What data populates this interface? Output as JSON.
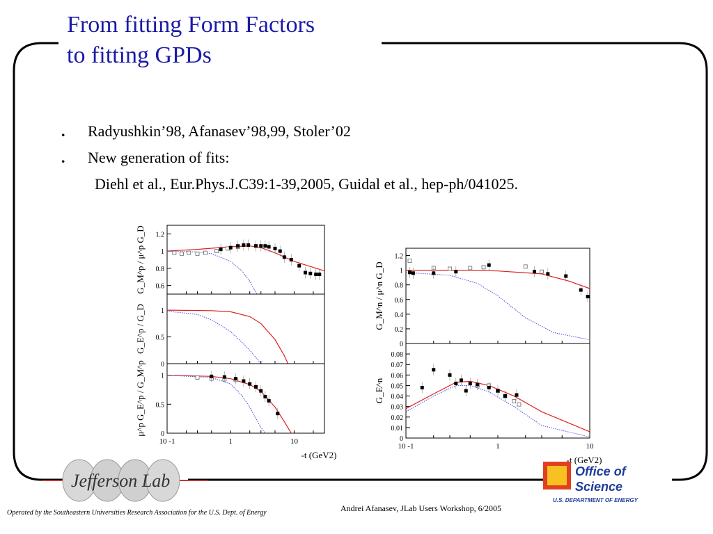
{
  "slide": {
    "title_line1": "From fitting Form Factors",
    "title_line2": "to fitting GPDs",
    "bullets": [
      "Radyushkin’98, Afanasev’98,99, Stoler’02",
      "New generation of fits:"
    ],
    "sub_bullet": "Diehl et al., Eur.Phys.J.C39:1-39,2005, Guidal et al., hep-ph/041025.",
    "footer_left": "Operated by the Southeastern Universities Research Association for the U.S. Dept. of Energy",
    "footer_right": "Andrei Afanasev, JLab Users Workshop, 6/2005",
    "logo_left": "Jefferson Lab",
    "logo_right": {
      "line1": "Office of",
      "line2": "Science",
      "line3": "U.S. DEPARTMENT OF ENERGY"
    },
    "colors": {
      "title": "#1a1aa8",
      "fit_red": "#e02020",
      "fit_blue_dotted": "#4a4ae0",
      "ofs_blue": "#1e3c9a"
    }
  },
  "chart_data": [
    {
      "type": "scatter",
      "id": "proton-gm",
      "ylabel": "G_M^p / μ^p G_D",
      "xscale": "log",
      "xlim": [
        0.1,
        30
      ],
      "ylim": [
        0.5,
        1.3
      ],
      "yticks": [
        "1.2",
        "1",
        "0.8",
        "0.6"
      ],
      "ytick_values": [
        1.2,
        1.0,
        0.8,
        0.6
      ],
      "open_points": [
        [
          0.13,
          0.98
        ],
        [
          0.17,
          0.97
        ],
        [
          0.22,
          0.98
        ],
        [
          0.3,
          0.97
        ],
        [
          0.4,
          0.98
        ],
        [
          0.6,
          1.0
        ],
        [
          0.9,
          1.03
        ],
        [
          1.3,
          1.05
        ]
      ],
      "filled_points": [
        [
          0.7,
          1.02
        ],
        [
          1.0,
          1.04
        ],
        [
          1.3,
          1.06
        ],
        [
          1.6,
          1.07
        ],
        [
          1.9,
          1.07
        ],
        [
          2.5,
          1.06
        ],
        [
          3.0,
          1.06
        ],
        [
          3.5,
          1.06
        ],
        [
          4.0,
          1.05
        ],
        [
          5.0,
          1.03
        ],
        [
          6.0,
          1.0
        ],
        [
          7.0,
          0.93
        ],
        [
          9.0,
          0.9
        ],
        [
          12.0,
          0.83
        ],
        [
          15.0,
          0.75
        ],
        [
          18.0,
          0.74
        ],
        [
          22.0,
          0.73
        ],
        [
          25.0,
          0.73
        ]
      ],
      "fit_red": [
        [
          0.1,
          1.0
        ],
        [
          0.3,
          1.02
        ],
        [
          1.0,
          1.05
        ],
        [
          2.0,
          1.06
        ],
        [
          3.0,
          1.04
        ],
        [
          5.0,
          0.98
        ],
        [
          10.0,
          0.88
        ],
        [
          30.0,
          0.77
        ]
      ],
      "fit_blue": [
        [
          0.1,
          1.0
        ],
        [
          0.3,
          0.99
        ],
        [
          0.5,
          0.97
        ],
        [
          1.0,
          0.88
        ],
        [
          1.5,
          0.77
        ],
        [
          2.0,
          0.65
        ],
        [
          2.6,
          0.5
        ]
      ]
    },
    {
      "type": "line",
      "id": "proton-ge",
      "ylabel": "G_E^p / G_D",
      "xscale": "log",
      "xlim": [
        0.1,
        30
      ],
      "ylim": [
        0,
        1.3
      ],
      "yticks": [
        "1",
        "0.5",
        "0"
      ],
      "ytick_values": [
        1,
        0.5,
        0
      ],
      "fit_red": [
        [
          0.1,
          1.0
        ],
        [
          0.5,
          0.99
        ],
        [
          1.0,
          0.97
        ],
        [
          2.0,
          0.88
        ],
        [
          3.0,
          0.75
        ],
        [
          5.0,
          0.45
        ],
        [
          7.0,
          0.15
        ],
        [
          8.0,
          0.0
        ]
      ],
      "fit_blue": [
        [
          0.1,
          0.98
        ],
        [
          0.3,
          0.92
        ],
        [
          0.5,
          0.82
        ],
        [
          1.0,
          0.6
        ],
        [
          1.5,
          0.4
        ],
        [
          2.0,
          0.25
        ],
        [
          3.0,
          0.0
        ]
      ]
    },
    {
      "type": "scatter",
      "id": "proton-ratio",
      "ylabel": "μ^p G_E^p / G_M^p",
      "xscale": "log",
      "xlim": [
        0.1,
        30
      ],
      "ylim": [
        0,
        1.2
      ],
      "yticks": [
        "1",
        "0.5",
        "0"
      ],
      "ytick_values": [
        1,
        0.5,
        0
      ],
      "xticks": [
        "10 -1",
        "1",
        "10"
      ],
      "xtick_values": [
        0.1,
        1,
        10
      ],
      "xlabel": "-t (GeV2)",
      "open_points": [
        [
          0.3,
          0.96
        ],
        [
          0.5,
          0.94
        ],
        [
          0.8,
          0.93
        ],
        [
          1.2,
          0.92
        ]
      ],
      "filled_points": [
        [
          0.5,
          0.98
        ],
        [
          0.8,
          0.97
        ],
        [
          1.2,
          0.94
        ],
        [
          1.6,
          0.9
        ],
        [
          2.0,
          0.85
        ],
        [
          2.5,
          0.8
        ],
        [
          3.0,
          0.73
        ],
        [
          3.5,
          0.63
        ],
        [
          4.0,
          0.56
        ],
        [
          5.5,
          0.34
        ]
      ],
      "fit_red": [
        [
          0.1,
          1.0
        ],
        [
          0.5,
          0.98
        ],
        [
          1.0,
          0.94
        ],
        [
          2.0,
          0.84
        ],
        [
          3.0,
          0.72
        ],
        [
          5.0,
          0.45
        ],
        [
          7.0,
          0.2
        ],
        [
          9.0,
          0.0
        ]
      ],
      "fit_blue": [
        [
          0.1,
          1.0
        ],
        [
          0.5,
          0.96
        ],
        [
          1.0,
          0.85
        ],
        [
          1.5,
          0.65
        ],
        [
          2.0,
          0.45
        ],
        [
          3.0,
          0.1
        ],
        [
          3.5,
          0.0
        ]
      ]
    },
    {
      "type": "scatter",
      "id": "neutron-gm",
      "ylabel": "G_M^n / μ^n G_D",
      "xscale": "log",
      "xlim": [
        0.1,
        10
      ],
      "ylim": [
        0,
        1.3
      ],
      "yticks": [
        "1.2",
        "1",
        "0.8",
        "0.6",
        "0.4",
        "0.2",
        "0"
      ],
      "ytick_values": [
        1.2,
        1.0,
        0.8,
        0.6,
        0.4,
        0.2,
        0
      ],
      "open_points": [
        [
          0.11,
          1.13
        ],
        [
          0.2,
          1.03
        ],
        [
          0.3,
          1.02
        ],
        [
          0.5,
          1.03
        ],
        [
          0.7,
          1.04
        ],
        [
          2.0,
          1.05
        ],
        [
          3.0,
          0.98
        ]
      ],
      "filled_points": [
        [
          0.11,
          0.97
        ],
        [
          0.12,
          0.96
        ],
        [
          0.2,
          0.96
        ],
        [
          0.35,
          0.98
        ],
        [
          0.8,
          1.07
        ],
        [
          2.5,
          0.98
        ],
        [
          3.5,
          0.95
        ],
        [
          5.5,
          0.92
        ],
        [
          8.0,
          0.73
        ],
        [
          9.5,
          0.64
        ]
      ],
      "fit_red": [
        [
          0.1,
          1.0
        ],
        [
          0.5,
          1.0
        ],
        [
          1.0,
          0.99
        ],
        [
          3.0,
          0.95
        ],
        [
          6.0,
          0.85
        ],
        [
          10.0,
          0.75
        ]
      ],
      "fit_blue": [
        [
          0.1,
          0.97
        ],
        [
          0.3,
          0.93
        ],
        [
          0.6,
          0.82
        ],
        [
          1.0,
          0.65
        ],
        [
          2.0,
          0.35
        ],
        [
          4.0,
          0.15
        ],
        [
          10.0,
          0.05
        ]
      ]
    },
    {
      "type": "scatter",
      "id": "neutron-ge",
      "ylabel": "G_E^n",
      "xscale": "log",
      "xlim": [
        0.1,
        10
      ],
      "ylim": [
        0,
        0.09
      ],
      "yticks": [
        "0.08",
        "0.07",
        "0.06",
        "0.05",
        "0.04",
        "0.03",
        "0.02",
        "0.01",
        "0"
      ],
      "ytick_values": [
        0.08,
        0.07,
        0.06,
        0.05,
        0.04,
        0.03,
        0.02,
        0.01,
        0
      ],
      "xticks": [
        "10 -1",
        "1",
        "10"
      ],
      "xtick_values": [
        0.1,
        1,
        10
      ],
      "xlabel": "-t (GeV2)",
      "open_points": [
        [
          0.6,
          0.05
        ],
        [
          0.8,
          0.05
        ],
        [
          1.0,
          0.045
        ],
        [
          1.2,
          0.04
        ],
        [
          1.5,
          0.035
        ],
        [
          1.7,
          0.032
        ]
      ],
      "filled_points": [
        [
          0.15,
          0.048
        ],
        [
          0.2,
          0.065
        ],
        [
          0.3,
          0.06
        ],
        [
          0.35,
          0.052
        ],
        [
          0.4,
          0.055
        ],
        [
          0.45,
          0.045
        ],
        [
          0.5,
          0.052
        ],
        [
          0.6,
          0.051
        ],
        [
          0.8,
          0.048
        ],
        [
          1.0,
          0.045
        ],
        [
          1.2,
          0.04
        ],
        [
          1.6,
          0.041
        ]
      ],
      "fit_red": [
        [
          0.1,
          0.028
        ],
        [
          0.2,
          0.042
        ],
        [
          0.35,
          0.053
        ],
        [
          0.5,
          0.054
        ],
        [
          0.8,
          0.05
        ],
        [
          1.5,
          0.04
        ],
        [
          3.0,
          0.025
        ],
        [
          10.0,
          0.006
        ]
      ],
      "fit_blue": [
        [
          0.1,
          0.025
        ],
        [
          0.2,
          0.04
        ],
        [
          0.35,
          0.05
        ],
        [
          0.5,
          0.05
        ],
        [
          0.8,
          0.044
        ],
        [
          1.5,
          0.03
        ],
        [
          3.0,
          0.012
        ],
        [
          10.0,
          0.001
        ]
      ]
    }
  ]
}
